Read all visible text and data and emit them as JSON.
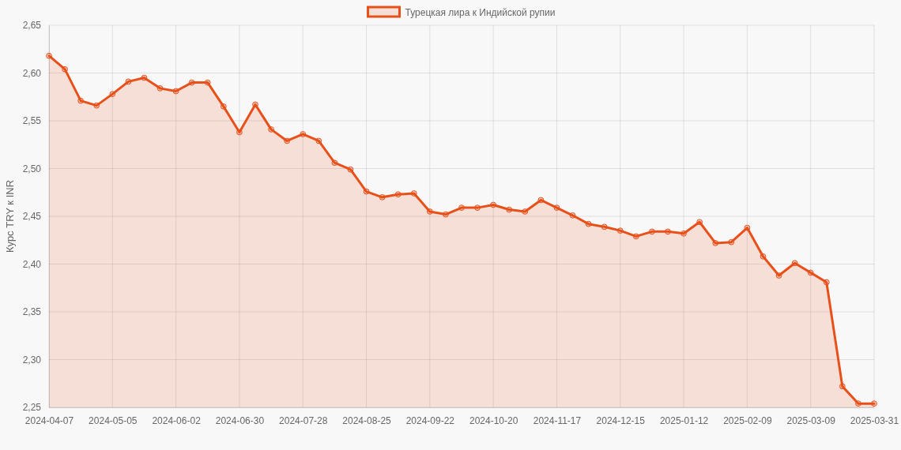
{
  "chart_data": {
    "type": "area",
    "ylabel": "Курс TRY к INR",
    "categories": [
      "2024-04-07",
      null,
      null,
      null,
      "2024-05-05",
      null,
      null,
      null,
      "2024-06-02",
      null,
      null,
      null,
      "2024-06-30",
      null,
      null,
      null,
      "2024-07-28",
      null,
      null,
      null,
      "2024-08-25",
      null,
      null,
      null,
      "2024-09-22",
      null,
      null,
      null,
      "2024-10-20",
      null,
      null,
      null,
      "2024-11-17",
      null,
      null,
      null,
      "2024-12-15",
      null,
      null,
      null,
      "2025-01-12",
      null,
      null,
      null,
      "2025-02-09",
      null,
      null,
      null,
      "2025-03-09",
      null,
      null,
      null,
      "2025-03-31"
    ],
    "series": [
      {
        "name": "Турецкая лира к Индийской рупии",
        "color": "#e8501a",
        "values": [
          2.618,
          2.604,
          2.571,
          2.566,
          2.578,
          2.591,
          2.595,
          2.584,
          2.581,
          2.59,
          2.59,
          2.565,
          2.538,
          2.567,
          2.541,
          2.529,
          2.536,
          2.529,
          2.506,
          2.499,
          2.476,
          2.47,
          2.473,
          2.474,
          2.455,
          2.452,
          2.459,
          2.459,
          2.462,
          2.457,
          2.455,
          2.467,
          2.459,
          2.451,
          2.442,
          2.439,
          2.435,
          2.429,
          2.434,
          2.434,
          2.432,
          2.444,
          2.422,
          2.423,
          2.438,
          2.408,
          2.388,
          2.401,
          2.391,
          2.381,
          2.272,
          2.254,
          2.254
        ]
      }
    ],
    "ylim": [
      2.25,
      2.65
    ],
    "yticks": [
      {
        "value": 2.25,
        "label": "2,25"
      },
      {
        "value": 2.3,
        "label": "2,30"
      },
      {
        "value": 2.35,
        "label": "2,35"
      },
      {
        "value": 2.4,
        "label": "2,40"
      },
      {
        "value": 2.45,
        "label": "2,45"
      },
      {
        "value": 2.5,
        "label": "2,50"
      },
      {
        "value": 2.55,
        "label": "2,55"
      },
      {
        "value": 2.6,
        "label": "2,60"
      },
      {
        "value": 2.65,
        "label": "2,65"
      }
    ],
    "grid": true,
    "legend": "top",
    "marker": "circle",
    "line_style": "solid"
  }
}
